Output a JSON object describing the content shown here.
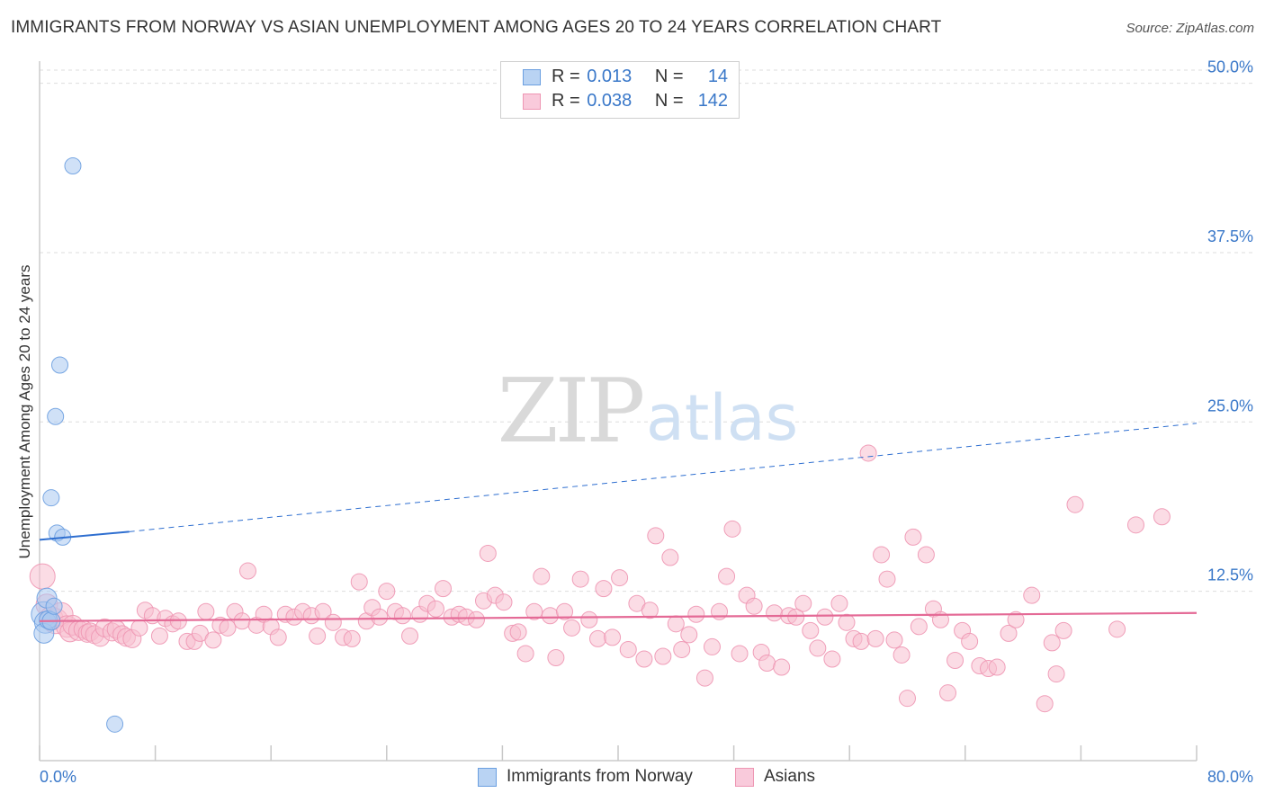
{
  "title": "IMMIGRANTS FROM NORWAY VS ASIAN UNEMPLOYMENT AMONG AGES 20 TO 24 YEARS CORRELATION CHART",
  "source": "Source: ZipAtlas.com",
  "watermark": {
    "zip": "ZIP",
    "atlas": "atlas"
  },
  "legend": {
    "series1": {
      "r_label": "R =",
      "r_value": "0.013",
      "n_label": "N =",
      "n_value": "14"
    },
    "series2": {
      "r_label": "R =",
      "r_value": "0.038",
      "n_label": "N =",
      "n_value": "142"
    }
  },
  "colors": {
    "blue_fill": "#a9c8f0",
    "blue_stroke": "#6b9fe0",
    "blue_line": "#2f6fd0",
    "pink_fill": "#f7bfd0",
    "pink_stroke": "#ee96b3",
    "pink_line": "#e46a96",
    "tick_label": "#3a78c9",
    "grid": "#dddddd"
  },
  "chart_data": {
    "type": "scatter",
    "title": "IMMIGRANTS FROM NORWAY VS ASIAN UNEMPLOYMENT AMONG AGES 20 TO 24 YEARS CORRELATION CHART",
    "xlabel": "",
    "ylabel": "Unemployment Among Ages 20 to 24 years",
    "xlim": [
      0,
      80
    ],
    "ylim": [
      0,
      51.5
    ],
    "x_tick_labels": [
      "0.0%",
      "80.0%"
    ],
    "y_ticks": [
      {
        "value": 12.5,
        "label": "12.5%"
      },
      {
        "value": 25.0,
        "label": "25.0%"
      },
      {
        "value": 37.5,
        "label": "37.5%"
      },
      {
        "value": 50.0,
        "label": "50.0%"
      }
    ],
    "grid": true,
    "legend_position": "top-center",
    "series": [
      {
        "name": "Immigrants from Norway",
        "color": "blue",
        "r": 0.013,
        "n": 14,
        "trend": {
          "solid": [
            [
              0,
              16.3
            ],
            [
              6.2,
              16.9
            ]
          ],
          "dashed": [
            [
              6.2,
              16.9
            ],
            [
              80,
              24.9
            ]
          ]
        },
        "points": [
          [
            0.3,
            10.8
          ],
          [
            0.4,
            10.2
          ],
          [
            0.3,
            9.4
          ],
          [
            0.5,
            12.0
          ],
          [
            0.6,
            10.4
          ],
          [
            0.8,
            10.3
          ],
          [
            1.0,
            11.4
          ],
          [
            2.3,
            43.9
          ],
          [
            1.4,
            29.2
          ],
          [
            1.1,
            25.4
          ],
          [
            0.8,
            19.4
          ],
          [
            1.2,
            16.8
          ],
          [
            1.6,
            16.5
          ],
          [
            5.2,
            2.7
          ]
        ],
        "sizes": [
          14,
          12,
          11,
          11,
          10,
          10,
          9,
          9,
          9,
          9,
          9,
          9,
          9,
          9
        ]
      },
      {
        "name": "Asians",
        "color": "pink",
        "r": 0.038,
        "n": 142,
        "trend": {
          "solid": [
            [
              0,
              10.3
            ],
            [
              80,
              10.9
            ]
          ]
        },
        "points": [
          [
            0.2,
            13.6
          ],
          [
            0.5,
            11.5
          ],
          [
            0.8,
            10.5
          ],
          [
            1.1,
            10.3
          ],
          [
            1.5,
            10.8
          ],
          [
            1.9,
            9.9
          ],
          [
            2.1,
            9.5
          ],
          [
            2.3,
            10.0
          ],
          [
            2.7,
            9.6
          ],
          [
            3.0,
            9.7
          ],
          [
            3.3,
            9.4
          ],
          [
            3.5,
            9.5
          ],
          [
            3.8,
            9.3
          ],
          [
            4.2,
            9.1
          ],
          [
            4.5,
            9.8
          ],
          [
            5.0,
            9.5
          ],
          [
            5.3,
            9.7
          ],
          [
            5.7,
            9.3
          ],
          [
            6.0,
            9.1
          ],
          [
            6.4,
            9.0
          ],
          [
            6.9,
            9.8
          ],
          [
            7.3,
            11.1
          ],
          [
            7.8,
            10.7
          ],
          [
            8.3,
            9.2
          ],
          [
            8.7,
            10.5
          ],
          [
            9.2,
            10.1
          ],
          [
            9.6,
            10.3
          ],
          [
            10.2,
            8.8
          ],
          [
            10.7,
            8.8
          ],
          [
            11.1,
            9.4
          ],
          [
            11.5,
            11.0
          ],
          [
            12.0,
            8.9
          ],
          [
            12.5,
            10.0
          ],
          [
            13.0,
            9.8
          ],
          [
            13.5,
            11.0
          ],
          [
            14.0,
            10.3
          ],
          [
            14.4,
            14.0
          ],
          [
            15.0,
            10.0
          ],
          [
            15.5,
            10.8
          ],
          [
            16.0,
            9.9
          ],
          [
            16.5,
            9.1
          ],
          [
            17.0,
            10.8
          ],
          [
            17.6,
            10.6
          ],
          [
            18.2,
            11.0
          ],
          [
            18.8,
            10.7
          ],
          [
            19.2,
            9.2
          ],
          [
            19.6,
            11.0
          ],
          [
            20.3,
            10.2
          ],
          [
            21.0,
            9.1
          ],
          [
            21.6,
            9.0
          ],
          [
            22.1,
            13.2
          ],
          [
            22.6,
            10.3
          ],
          [
            23.0,
            11.3
          ],
          [
            23.5,
            10.6
          ],
          [
            24.0,
            12.5
          ],
          [
            24.6,
            11.0
          ],
          [
            25.1,
            10.7
          ],
          [
            25.6,
            9.2
          ],
          [
            26.3,
            10.8
          ],
          [
            26.8,
            11.6
          ],
          [
            27.4,
            11.2
          ],
          [
            27.9,
            12.7
          ],
          [
            28.5,
            10.6
          ],
          [
            29.0,
            10.8
          ],
          [
            29.5,
            10.6
          ],
          [
            30.2,
            10.4
          ],
          [
            30.7,
            11.8
          ],
          [
            31.0,
            15.3
          ],
          [
            31.5,
            12.2
          ],
          [
            32.1,
            11.7
          ],
          [
            32.7,
            9.4
          ],
          [
            33.1,
            9.5
          ],
          [
            33.6,
            7.9
          ],
          [
            34.2,
            11.0
          ],
          [
            34.7,
            13.6
          ],
          [
            35.3,
            10.7
          ],
          [
            35.7,
            7.6
          ],
          [
            36.3,
            11.0
          ],
          [
            36.8,
            9.8
          ],
          [
            37.4,
            13.4
          ],
          [
            38.0,
            10.4
          ],
          [
            38.6,
            9.0
          ],
          [
            39.0,
            12.7
          ],
          [
            39.6,
            9.1
          ],
          [
            40.1,
            13.5
          ],
          [
            40.7,
            8.2
          ],
          [
            41.3,
            11.6
          ],
          [
            41.8,
            7.5
          ],
          [
            42.2,
            11.1
          ],
          [
            42.6,
            16.6
          ],
          [
            43.1,
            7.7
          ],
          [
            43.6,
            15.0
          ],
          [
            44.0,
            10.1
          ],
          [
            44.4,
            8.2
          ],
          [
            44.9,
            9.3
          ],
          [
            45.4,
            10.8
          ],
          [
            46.0,
            6.1
          ],
          [
            46.5,
            8.4
          ],
          [
            47.0,
            11.0
          ],
          [
            47.5,
            13.6
          ],
          [
            47.9,
            17.1
          ],
          [
            48.4,
            7.9
          ],
          [
            48.9,
            12.2
          ],
          [
            49.4,
            11.4
          ],
          [
            49.9,
            8.0
          ],
          [
            50.3,
            7.2
          ],
          [
            50.8,
            10.9
          ],
          [
            51.3,
            6.9
          ],
          [
            51.8,
            10.7
          ],
          [
            52.3,
            10.6
          ],
          [
            52.8,
            11.6
          ],
          [
            53.3,
            9.6
          ],
          [
            53.8,
            8.3
          ],
          [
            54.3,
            10.6
          ],
          [
            54.8,
            7.5
          ],
          [
            55.3,
            11.6
          ],
          [
            55.8,
            10.2
          ],
          [
            56.3,
            9.0
          ],
          [
            56.8,
            8.8
          ],
          [
            57.3,
            22.7
          ],
          [
            57.8,
            9.0
          ],
          [
            58.2,
            15.2
          ],
          [
            58.6,
            13.4
          ],
          [
            59.1,
            8.9
          ],
          [
            59.6,
            7.8
          ],
          [
            60.0,
            4.6
          ],
          [
            60.4,
            16.5
          ],
          [
            60.8,
            9.9
          ],
          [
            61.3,
            15.2
          ],
          [
            61.8,
            11.2
          ],
          [
            62.3,
            10.4
          ],
          [
            62.8,
            5.0
          ],
          [
            63.3,
            7.4
          ],
          [
            63.8,
            9.6
          ],
          [
            64.3,
            8.8
          ],
          [
            65.0,
            7.0
          ],
          [
            65.6,
            6.8
          ],
          [
            66.2,
            6.9
          ],
          [
            67.0,
            9.4
          ],
          [
            67.5,
            10.4
          ],
          [
            68.6,
            12.2
          ],
          [
            69.5,
            4.2
          ],
          [
            70.0,
            8.7
          ],
          [
            70.3,
            6.4
          ],
          [
            70.8,
            9.6
          ],
          [
            71.6,
            18.9
          ],
          [
            74.5,
            9.7
          ],
          [
            75.8,
            17.4
          ],
          [
            77.6,
            18.0
          ]
        ],
        "sizes": [
          14,
          12,
          13,
          14,
          13,
          12,
          11,
          11,
          11,
          10,
          10,
          10,
          10,
          10,
          10,
          10,
          10,
          10,
          10,
          10,
          9,
          9,
          9,
          9,
          9,
          9,
          9,
          9,
          9,
          9,
          9,
          9,
          9,
          9,
          9,
          9,
          9,
          9,
          9,
          9,
          9,
          9,
          9,
          9,
          9,
          9,
          9,
          9,
          9,
          9,
          9,
          9,
          9,
          9,
          9,
          9,
          9,
          9,
          9,
          9,
          9,
          9,
          9,
          9,
          9,
          9,
          9,
          9,
          9,
          9,
          9,
          9,
          9,
          9,
          9,
          9,
          9,
          9,
          9,
          9,
          9,
          9,
          9,
          9,
          9,
          9,
          9,
          9,
          9,
          9,
          9,
          9,
          9,
          9,
          9,
          9,
          9,
          9,
          9,
          9,
          9,
          9,
          9,
          9,
          9,
          9,
          9,
          9,
          9,
          9,
          9,
          9,
          9,
          9,
          9,
          9,
          9,
          9,
          9,
          9,
          9,
          9,
          9,
          9,
          9,
          9,
          9,
          9,
          9,
          9,
          9,
          9,
          9,
          9,
          9,
          9,
          9,
          9,
          9,
          9,
          9,
          9
        ]
      }
    ]
  }
}
